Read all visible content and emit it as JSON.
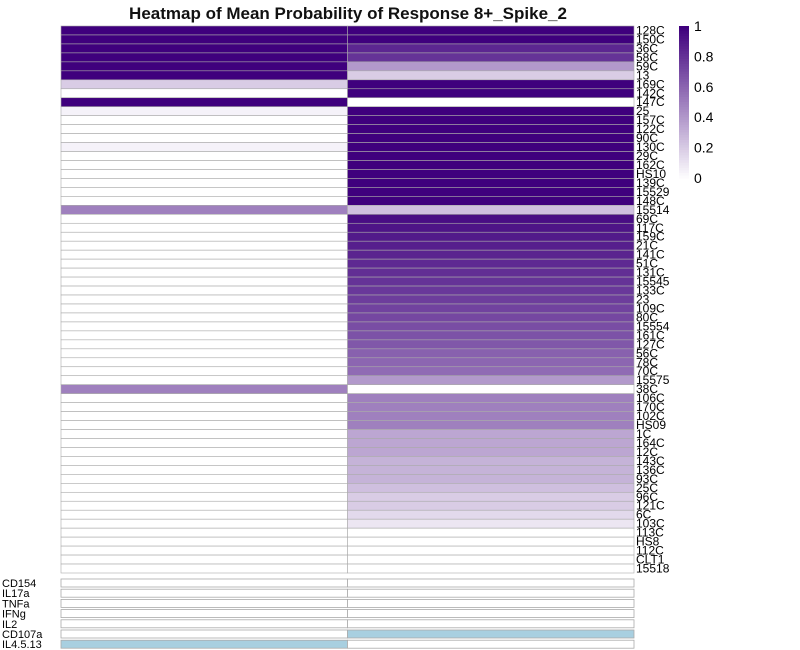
{
  "chart_data": {
    "type": "heatmap",
    "title": "Heatmap of Mean Probability of Response 8+_Spike_2",
    "xlabel": "",
    "ylabel": "",
    "columns": 2,
    "color_scale": {
      "low": "#ffffff",
      "high": "#3f007d",
      "range": [
        0,
        1
      ]
    },
    "colorbar_ticks": [
      "1",
      "0.8",
      "0.6",
      "0.4",
      "0.2",
      "0"
    ],
    "rows": [
      "128C",
      "150C",
      "36C",
      "58C",
      "59C",
      "13",
      "169C",
      "142C",
      "147C",
      "25",
      "157C",
      "122C",
      "90C",
      "130C",
      "29C",
      "162C",
      "HS10",
      "139C",
      "15529",
      "148C",
      "15514",
      "69C",
      "117C",
      "159C",
      "21C",
      "141C",
      "51C",
      "131C",
      "15545",
      "133C",
      "23",
      "109C",
      "80C",
      "15554",
      "161C",
      "127C",
      "56C",
      "78C",
      "70C",
      "15575",
      "38C",
      "106C",
      "170C",
      "102C",
      "HS09",
      "1C",
      "164C",
      "12C",
      "143C",
      "136C",
      "93C",
      "25C",
      "96C",
      "121C",
      "6C",
      "103C",
      "113C",
      "HS8",
      "112C",
      "CLT1",
      "15518"
    ],
    "values": [
      [
        1,
        1
      ],
      [
        1,
        1
      ],
      [
        1,
        0.85
      ],
      [
        1,
        0.8
      ],
      [
        1,
        0.4
      ],
      [
        1,
        0.2
      ],
      [
        0.2,
        1
      ],
      [
        0,
        1
      ],
      [
        1,
        0
      ],
      [
        0.05,
        1
      ],
      [
        0,
        1
      ],
      [
        0,
        1
      ],
      [
        0,
        1
      ],
      [
        0.05,
        1
      ],
      [
        0,
        1
      ],
      [
        0,
        1
      ],
      [
        0,
        1
      ],
      [
        0,
        1
      ],
      [
        0,
        1
      ],
      [
        0,
        1
      ],
      [
        0.5,
        0.25
      ],
      [
        0,
        0.95
      ],
      [
        0,
        0.92
      ],
      [
        0,
        0.9
      ],
      [
        0,
        0.88
      ],
      [
        0,
        0.86
      ],
      [
        0,
        0.84
      ],
      [
        0,
        0.82
      ],
      [
        0,
        0.8
      ],
      [
        0,
        0.78
      ],
      [
        0,
        0.76
      ],
      [
        0,
        0.74
      ],
      [
        0,
        0.72
      ],
      [
        0,
        0.7
      ],
      [
        0,
        0.68
      ],
      [
        0,
        0.66
      ],
      [
        0,
        0.62
      ],
      [
        0,
        0.6
      ],
      [
        0,
        0.58
      ],
      [
        0,
        0.4
      ],
      [
        0.5,
        0
      ],
      [
        0,
        0.5
      ],
      [
        0,
        0.5
      ],
      [
        0,
        0.5
      ],
      [
        0,
        0.5
      ],
      [
        0,
        0.35
      ],
      [
        0,
        0.35
      ],
      [
        0,
        0.35
      ],
      [
        0,
        0.3
      ],
      [
        0,
        0.3
      ],
      [
        0,
        0.3
      ],
      [
        0,
        0.25
      ],
      [
        0,
        0.2
      ],
      [
        0,
        0.2
      ],
      [
        0,
        0.15
      ],
      [
        0,
        0.1
      ],
      [
        0,
        0
      ],
      [
        0,
        0
      ],
      [
        0,
        0
      ],
      [
        0,
        0
      ],
      [
        0,
        0
      ]
    ],
    "annotation": {
      "rows": [
        "CD154",
        "IL17a",
        "TNFa",
        "IFNg",
        "IL2",
        "CD107a",
        "IL4.5.13"
      ],
      "on_color": "#a8cfe0",
      "off_color": "#ffffff",
      "values": [
        [
          0,
          0
        ],
        [
          0,
          0
        ],
        [
          0,
          0
        ],
        [
          0,
          0
        ],
        [
          0,
          0
        ],
        [
          0,
          1
        ],
        [
          1,
          0
        ]
      ]
    }
  }
}
